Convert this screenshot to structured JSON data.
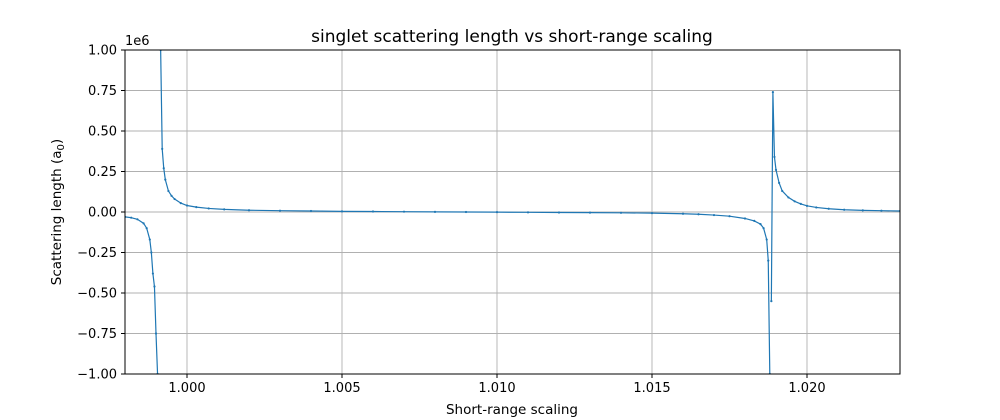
{
  "chart_data": {
    "type": "line",
    "title": "singlet scattering length vs short-range scaling",
    "xlabel": "Short-range scaling",
    "ylabel_main": "Scattering length (a",
    "ylabel_sub": "0",
    "ylabel_close": ")",
    "y_offset_label": "1e6",
    "xlim": [
      0.998,
      1.023
    ],
    "ylim": [
      -1.0,
      1.0
    ],
    "x_ticks": [
      1.0,
      1.005,
      1.01,
      1.015,
      1.02
    ],
    "x_tick_labels": [
      "1.000",
      "1.005",
      "1.010",
      "1.015",
      "1.020"
    ],
    "y_ticks": [
      -1.0,
      -0.75,
      -0.5,
      -0.25,
      0.0,
      0.25,
      0.5,
      0.75,
      1.0
    ],
    "y_tick_labels": [
      "−1.00",
      "−0.75",
      "−0.50",
      "−0.25",
      "0.00",
      "0.25",
      "0.50",
      "0.75",
      "1.00"
    ],
    "grid": true,
    "line_color": "#1f77b4",
    "series": [
      {
        "segments": [
          {
            "x": [
              0.998,
              0.9982,
              0.9984,
              0.9986,
              0.9987,
              0.9988,
              0.99885,
              0.9989,
              0.99895,
              0.999,
              0.99905
            ],
            "y": [
              -0.03,
              -0.035,
              -0.045,
              -0.07,
              -0.1,
              -0.17,
              -0.25,
              -0.38,
              -0.46,
              -0.75,
              -1.0
            ]
          },
          {
            "x": [
              0.99915,
              0.9992,
              0.99925,
              0.9993,
              0.9994,
              0.9995,
              0.9996,
              0.9998,
              1.0,
              1.0003,
              1.0007,
              1.0012,
              1.002,
              1.003,
              1.004,
              1.005,
              1.006,
              1.007,
              1.008,
              1.009,
              1.01,
              1.011,
              1.012,
              1.013,
              1.014,
              1.015,
              1.016,
              1.0165,
              1.017,
              1.0175,
              1.018,
              1.0183,
              1.0185,
              1.0186,
              1.0187,
              1.01875,
              1.0188
            ],
            "y": [
              1.0,
              0.39,
              0.27,
              0.2,
              0.13,
              0.1,
              0.08,
              0.055,
              0.04,
              0.03,
              0.022,
              0.016,
              0.011,
              0.008,
              0.006,
              0.004,
              0.003,
              0.002,
              0.001,
              0.0,
              -0.001,
              -0.002,
              -0.003,
              -0.004,
              -0.005,
              -0.007,
              -0.011,
              -0.014,
              -0.019,
              -0.026,
              -0.04,
              -0.055,
              -0.075,
              -0.1,
              -0.17,
              -0.3,
              -1.0
            ]
          },
          {
            "x": [
              1.01885,
              1.0189,
              1.01895,
              1.019,
              1.0191,
              1.0192,
              1.0194,
              1.0196,
              1.0198,
              1.02,
              1.0203,
              1.0207,
              1.0212,
              1.0218,
              1.0224,
              1.023
            ],
            "y": [
              -0.55,
              0.74,
              0.34,
              0.26,
              0.18,
              0.13,
              0.09,
              0.066,
              0.05,
              0.038,
              0.028,
              0.02,
              0.014,
              0.01,
              0.008,
              0.006
            ]
          }
        ]
      }
    ]
  }
}
